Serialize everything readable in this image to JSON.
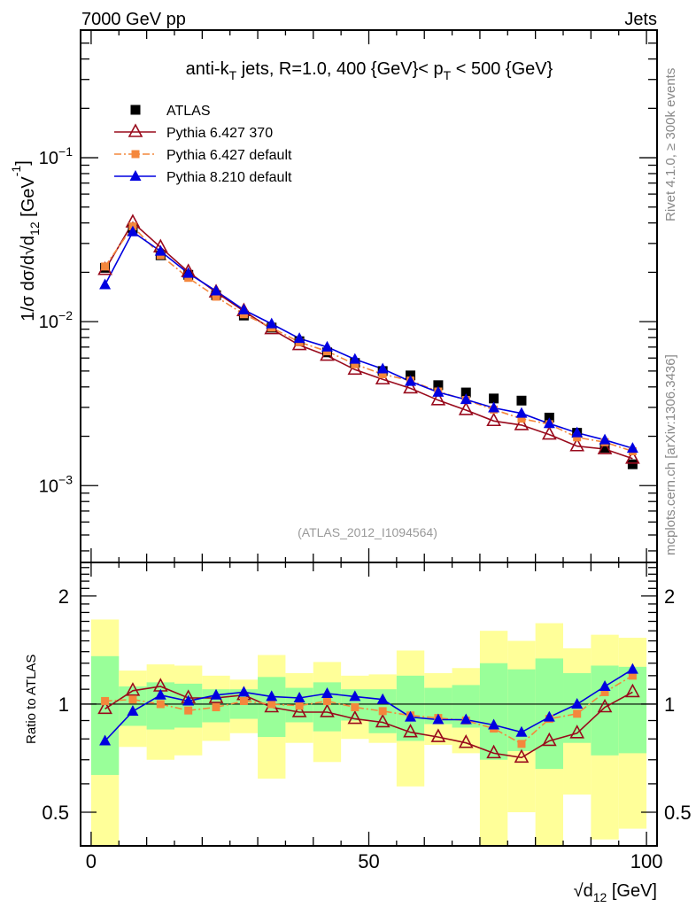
{
  "chart_data": [
    {
      "type": "scatter",
      "panel": "main",
      "yscale": "log",
      "header_left": "7000 GeV pp",
      "header_right": "Jets",
      "title": "anti-k_T jets, R=1.0, 400 {GeV}< p_T < 500 {GeV}",
      "ylabel": "1/σ dσ/d√d12 [GeV^-1]",
      "xlim": [
        -1.9,
        101.9
      ],
      "ylim": [
        0.00034,
        0.6
      ],
      "ytick_labels": [
        {
          "value": 0.1,
          "base": "10",
          "exp": "−1"
        },
        {
          "value": 0.01,
          "base": "10",
          "exp": "−2"
        },
        {
          "value": 0.001,
          "base": "10",
          "exp": "−3"
        }
      ],
      "watermark": "(ATLAS_2012_I1094564)",
      "side_label_top": "Rivet 4.1.0, ≥ 300k events",
      "side_label_bottom": "mcplots.cern.ch [arXiv:1306.3436]",
      "legend": {
        "position": "top-left",
        "entries": [
          {
            "label": "ATLAS",
            "series": "data"
          },
          {
            "label": "Pythia 6.427 370",
            "series": "p6_370"
          },
          {
            "label": "Pythia 6.427 default",
            "series": "p6_default"
          },
          {
            "label": "Pythia 8.210 default",
            "series": "p8_default"
          }
        ]
      },
      "x": [
        2.5,
        7.5,
        12.5,
        17.5,
        22.5,
        27.5,
        32.5,
        37.5,
        42.5,
        47.5,
        52.5,
        57.5,
        62.5,
        67.5,
        72.5,
        77.5,
        82.5,
        87.5,
        92.5,
        97.5
      ],
      "series": [
        {
          "name": "ATLAS",
          "key": "data",
          "color": "#000000",
          "marker": "square-filled",
          "values": [
            0.0213,
            0.037,
            0.0254,
            0.0193,
            0.0145,
            0.0109,
            0.0092,
            0.0076,
            0.0065,
            0.0056,
            0.005,
            0.0047,
            0.0041,
            0.0037,
            0.0034,
            0.0033,
            0.0026,
            0.0021,
            0.0017,
            0.00135
          ]
        },
        {
          "name": "Pythia 6.427 370",
          "key": "p6_370",
          "color": "#990a1c",
          "marker": "triangle-open",
          "line": "solid",
          "values": [
            0.0207,
            0.0403,
            0.0284,
            0.0201,
            0.0151,
            0.0116,
            0.009,
            0.0072,
            0.0062,
            0.0051,
            0.00445,
            0.00392,
            0.00332,
            0.00289,
            0.00248,
            0.00234,
            0.00205,
            0.00174,
            0.00167,
            0.00146
          ]
        },
        {
          "name": "Pythia 6.427 default",
          "key": "p6_default",
          "color": "#f4873c",
          "marker": "square-filled",
          "line": "dashdot",
          "values": [
            0.0217,
            0.0381,
            0.0254,
            0.0185,
            0.0142,
            0.0111,
            0.0092,
            0.0075,
            0.0066,
            0.0055,
            0.00478,
            0.00437,
            0.00375,
            0.00333,
            0.00291,
            0.00256,
            0.00237,
            0.00197,
            0.00184,
            0.00162
          ]
        },
        {
          "name": "Pythia 8.210 default",
          "key": "p8_default",
          "color": "#0000e0",
          "marker": "triangle-filled",
          "line": "solid",
          "values": [
            0.0168,
            0.0353,
            0.0269,
            0.0197,
            0.0154,
            0.0118,
            0.0097,
            0.0079,
            0.007,
            0.0059,
            0.00515,
            0.00432,
            0.00371,
            0.00335,
            0.00298,
            0.00276,
            0.00239,
            0.0021,
            0.0019,
            0.00169
          ]
        }
      ]
    },
    {
      "type": "scatter",
      "panel": "ratio",
      "yscale": "log",
      "ylabel": "Ratio to ATLAS",
      "xlabel": "√d12 [GeV]",
      "xlim": [
        -1.9,
        101.9
      ],
      "ylim": [
        0.403,
        2.48
      ],
      "xtick_labels": [
        {
          "value": 0,
          "label": "0"
        },
        {
          "value": 50,
          "label": "50"
        },
        {
          "value": 100,
          "label": "100"
        }
      ],
      "ytick_labels": [
        {
          "value": 2,
          "label": "2"
        },
        {
          "value": 1,
          "label": "1"
        },
        {
          "value": 0.5,
          "label": "0.5"
        }
      ],
      "bin_edges": [
        0,
        5,
        10,
        15,
        20,
        25,
        30,
        35,
        40,
        45,
        50,
        55,
        60,
        65,
        70,
        75,
        80,
        85,
        90,
        95,
        100
      ],
      "band_colors": {
        "stat": "#99ff99",
        "total": "#ffff99"
      },
      "band_inner": {
        "lo": [
          0.635,
          0.87,
          0.85,
          0.86,
          0.89,
          0.91,
          0.81,
          0.89,
          0.84,
          0.9,
          0.83,
          0.79,
          0.88,
          0.86,
          0.7,
          0.74,
          0.66,
          0.78,
          0.72,
          0.73
        ],
        "hi": [
          1.36,
          1.12,
          1.15,
          1.14,
          1.1,
          1.1,
          1.19,
          1.11,
          1.15,
          1.1,
          1.1,
          1.2,
          1.11,
          1.13,
          1.3,
          1.25,
          1.34,
          1.22,
          1.28,
          1.27
        ]
      },
      "band_outer": {
        "lo": [
          0.35,
          0.76,
          0.7,
          0.72,
          0.79,
          0.83,
          0.62,
          0.78,
          0.69,
          0.8,
          0.78,
          0.59,
          0.77,
          0.73,
          0.35,
          0.5,
          0.35,
          0.56,
          0.42,
          0.45
        ],
        "hi": [
          1.72,
          1.24,
          1.29,
          1.28,
          1.2,
          1.17,
          1.37,
          1.22,
          1.31,
          1.2,
          1.21,
          1.41,
          1.22,
          1.26,
          1.6,
          1.5,
          1.68,
          1.43,
          1.56,
          1.53
        ]
      },
      "x": [
        2.5,
        7.5,
        12.5,
        17.5,
        22.5,
        27.5,
        32.5,
        37.5,
        42.5,
        47.5,
        52.5,
        57.5,
        62.5,
        67.5,
        72.5,
        77.5,
        82.5,
        87.5,
        92.5,
        97.5
      ],
      "series": [
        {
          "name": "Pythia 6.427 370",
          "key": "p6_370",
          "color": "#990a1c",
          "marker": "triangle-open",
          "line": "solid",
          "values": [
            0.97,
            1.09,
            1.12,
            1.04,
            1.04,
            1.06,
            0.98,
            0.95,
            0.95,
            0.91,
            0.89,
            0.835,
            0.81,
            0.78,
            0.73,
            0.71,
            0.79,
            0.83,
            0.98,
            1.08
          ]
        },
        {
          "name": "Pythia 6.427 default",
          "key": "p6_default",
          "color": "#f4873c",
          "marker": "square-filled",
          "line": "dashdot",
          "values": [
            1.02,
            1.03,
            1.0,
            0.96,
            0.98,
            1.02,
            1.0,
            0.99,
            1.02,
            0.98,
            0.956,
            0.93,
            0.915,
            0.9,
            0.855,
            0.775,
            0.91,
            0.94,
            1.08,
            1.2
          ]
        },
        {
          "name": "Pythia 8.210 default",
          "key": "p8_default",
          "color": "#0000e0",
          "marker": "triangle-filled",
          "line": "solid",
          "values": [
            0.79,
            0.955,
            1.06,
            1.02,
            1.06,
            1.08,
            1.05,
            1.04,
            1.07,
            1.05,
            1.03,
            0.92,
            0.905,
            0.905,
            0.875,
            0.835,
            0.92,
            1.0,
            1.12,
            1.25
          ]
        }
      ],
      "reference_line": 1
    }
  ]
}
